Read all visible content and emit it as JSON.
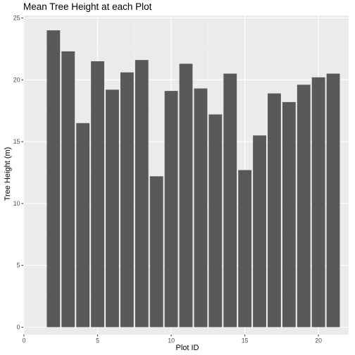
{
  "chart_data": {
    "type": "bar",
    "title": "Mean Tree Height at each Plot",
    "xlabel": "Plot ID",
    "ylabel": "Tree Height (m)",
    "x": [
      2,
      3,
      4,
      5,
      6,
      7,
      8,
      9,
      10,
      11,
      12,
      13,
      14,
      15,
      16,
      17,
      18,
      19,
      20,
      21
    ],
    "values": [
      24.0,
      22.3,
      16.5,
      21.5,
      19.2,
      20.6,
      21.6,
      12.2,
      19.1,
      21.3,
      19.3,
      17.2,
      20.5,
      12.7,
      15.5,
      18.9,
      18.2,
      19.6,
      20.2,
      20.5
    ],
    "xlim": [
      -0.05,
      22.05
    ],
    "ylim": [
      -0.6,
      25.2
    ],
    "x_ticks": [
      0,
      5,
      10,
      15,
      20
    ],
    "x_tick_labels": [
      "0",
      "5",
      "10",
      "15",
      "20"
    ],
    "y_ticks": [
      0,
      5,
      10,
      15,
      20,
      25
    ],
    "y_tick_labels": [
      "0",
      "5",
      "10",
      "15",
      "20",
      "25"
    ],
    "grid": true,
    "legend": "none",
    "colors": {
      "bar": "#595959",
      "panel": "#ebebeb",
      "grid_major": "#ffffff",
      "grid_minor": "#f5f5f5",
      "tick_text": "#4d4d4d",
      "tick_mark": "#333333"
    }
  }
}
